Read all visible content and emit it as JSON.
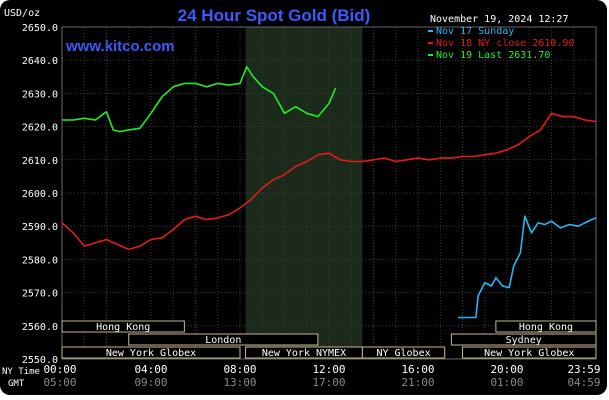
{
  "header": {
    "title": "24 Hour Spot Gold (Bid)",
    "unit_label": "USD/oz",
    "brand": "www.kitco.com",
    "timestamp": "November 19, 2024 12:27"
  },
  "colors": {
    "background": "#000000",
    "grid": "#3a3a3a",
    "shaded_session": "#1c2a1c",
    "axis_text": "#ffffff",
    "time_text": "#8a8a8a",
    "market_text": "#ffffff",
    "market_box": "#c9b98a",
    "series_sunday": "#29b6f6",
    "series_ny_close": "#e21b1b",
    "series_last": "#22ee22",
    "title_blue": "#3b5bff"
  },
  "chart_data": {
    "type": "line",
    "title": "24 Hour Spot Gold (Bid)",
    "ylabel": "USD/oz",
    "xlabel": "",
    "ylim": [
      2550,
      2650
    ],
    "yticks": [
      2550,
      2560,
      2570,
      2580,
      2590,
      2600,
      2610,
      2620,
      2630,
      2640,
      2650
    ],
    "ytick_labels": [
      "2550.0",
      "2560.0",
      "2570.0",
      "2580.0",
      "2590.0",
      "2600.0",
      "2610.0",
      "2620.0",
      "2630.0",
      "2640.0",
      "2650.0"
    ],
    "xlim": [
      0,
      24
    ],
    "xticks": [
      0,
      4,
      8,
      12,
      16,
      20,
      24
    ],
    "xtick_labels_ny": [
      "00:00",
      "04:00",
      "08:00",
      "12:00",
      "16:00",
      "20:00",
      "23:59"
    ],
    "xtick_labels_gmt": [
      "05:00",
      "09:00",
      "13:00",
      "17:00",
      "21:00",
      "01:00",
      "04:59"
    ],
    "axis_row_labels": [
      "NY Time",
      "GMT"
    ],
    "grid": true,
    "shaded_x_range": [
      8.25,
      13.5
    ],
    "legend_position": "top-right",
    "legend": [
      {
        "label": "Nov 17 Sunday",
        "color": "#29b6f6"
      },
      {
        "label": "Nov 18 NY close 2610.90",
        "color": "#e21b1b"
      },
      {
        "label": "Nov 19 Last 2631.70",
        "color": "#22ee22"
      }
    ],
    "series": [
      {
        "name": "Nov 17 Sunday",
        "color": "#29b6f6",
        "x": [
          17.8,
          18.6,
          18.7,
          19.0,
          19.3,
          19.5,
          19.8,
          20.1,
          20.3,
          20.6,
          20.8,
          21.1,
          21.4,
          21.7,
          22.0,
          22.4,
          22.8,
          23.2,
          23.5,
          23.8,
          24.0
        ],
        "y": [
          2562.5,
          2562.5,
          2569.0,
          2573.0,
          2572.0,
          2574.5,
          2572.0,
          2571.5,
          2578.0,
          2582.0,
          2593.0,
          2588.0,
          2591.0,
          2590.5,
          2591.5,
          2589.5,
          2590.5,
          2590.0,
          2591.0,
          2592.0,
          2592.5
        ]
      },
      {
        "name": "Nov 18 NY close 2610.90",
        "color": "#e21b1b",
        "x": [
          0.0,
          0.5,
          1.0,
          1.5,
          2.0,
          2.5,
          3.0,
          3.5,
          4.0,
          4.5,
          5.0,
          5.5,
          6.0,
          6.5,
          7.0,
          7.5,
          8.0,
          8.5,
          9.0,
          9.5,
          10.0,
          10.5,
          11.0,
          11.5,
          12.0,
          12.5,
          13.0,
          13.5,
          14.0,
          14.5,
          15.0,
          15.5,
          16.0,
          16.5,
          17.0,
          17.5,
          18.0,
          18.5,
          19.0,
          19.5,
          20.0,
          20.5,
          21.0,
          21.5,
          22.0,
          22.5,
          23.0,
          23.5,
          24.0
        ],
        "y": [
          2591.0,
          2588.0,
          2584.0,
          2585.0,
          2586.0,
          2584.5,
          2583.0,
          2584.0,
          2586.0,
          2586.5,
          2589.0,
          2592.0,
          2593.0,
          2592.0,
          2592.5,
          2593.5,
          2595.5,
          2598.0,
          2601.5,
          2604.0,
          2605.5,
          2608.0,
          2609.5,
          2611.5,
          2612.0,
          2610.0,
          2609.5,
          2609.5,
          2610.0,
          2610.5,
          2609.5,
          2610.0,
          2610.5,
          2610.0,
          2610.5,
          2610.5,
          2611.0,
          2611.0,
          2611.5,
          2612.0,
          2613.0,
          2614.5,
          2617.0,
          2619.0,
          2624.0,
          2623.0,
          2623.0,
          2622.0,
          2621.5
        ]
      },
      {
        "name": "Nov 19 Last 2631.70",
        "color": "#22ee22",
        "x": [
          0.0,
          0.5,
          1.0,
          1.5,
          2.0,
          2.3,
          2.6,
          3.0,
          3.5,
          4.0,
          4.5,
          5.0,
          5.5,
          6.0,
          6.5,
          7.0,
          7.5,
          8.0,
          8.3,
          8.6,
          9.0,
          9.5,
          10.0,
          10.5,
          11.0,
          11.5,
          12.0,
          12.3
        ],
        "y": [
          2622.0,
          2622.0,
          2622.5,
          2622.0,
          2624.5,
          2619.0,
          2618.5,
          2619.0,
          2619.5,
          2624.0,
          2629.0,
          2632.0,
          2633.0,
          2633.0,
          2632.0,
          2633.0,
          2632.5,
          2633.0,
          2638.0,
          2635.0,
          2632.0,
          2630.0,
          2624.0,
          2626.0,
          2624.0,
          2623.0,
          2627.0,
          2631.7
        ]
      }
    ],
    "market_sessions": [
      {
        "label": "Hong Kong",
        "x0": 0.0,
        "x1": 5.5,
        "row": 1
      },
      {
        "label": "London",
        "x0": 3.0,
        "x1": 11.5,
        "row": 2
      },
      {
        "label": "New York Globex",
        "x0": 0.0,
        "x1": 8.0,
        "row": 3
      },
      {
        "label": "New York NYMEX",
        "x0": 8.25,
        "x1": 13.5,
        "row": 3
      },
      {
        "label": "NY Globex",
        "x0": 13.5,
        "x1": 17.2,
        "row": 3
      },
      {
        "label": "Sydney",
        "x0": 17.5,
        "x1": 24.0,
        "row": 2
      },
      {
        "label": "Hong Kong",
        "x0": 19.5,
        "x1": 24.0,
        "row": 1
      },
      {
        "label": "New York Globex",
        "x0": 18.0,
        "x1": 24.0,
        "row": 3
      }
    ]
  }
}
